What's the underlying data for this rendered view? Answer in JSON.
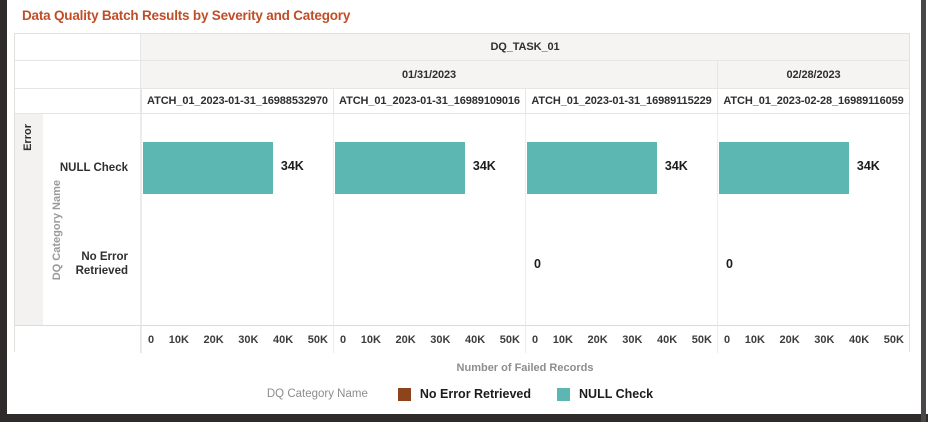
{
  "window": {
    "frame_color": "#2e2b2a"
  },
  "title": {
    "text": "Data Quality Batch Results by Severity and Category",
    "color": "#bf4e27"
  },
  "chart_data": {
    "type": "bar",
    "orientation": "horizontal",
    "title": "Data Quality Batch Results by Severity and Category",
    "facet_columns": {
      "task": "DQ_TASK_01",
      "dates": [
        {
          "label": "01/31/2023",
          "panel_span": 3
        },
        {
          "label": "02/28/2023",
          "panel_span": 1
        }
      ]
    },
    "row_axis": {
      "outer_label": "Error",
      "inner_label": "DQ Category Name",
      "categories": [
        "NULL Check",
        "No Error Retrieved"
      ]
    },
    "x_axis": {
      "label": "Number of Failed Records",
      "ticks": [
        "0",
        "10K",
        "20K",
        "30K",
        "40K",
        "50K"
      ],
      "range": [
        0,
        50000
      ],
      "grid": false
    },
    "panels": [
      {
        "batch": "ATCH_01_2023-01-31_16988532970",
        "null_check": {
          "value": 34000,
          "label": "34K"
        },
        "no_error_retrieved": null
      },
      {
        "batch": "ATCH_01_2023-01-31_16989109016",
        "null_check": {
          "value": 34000,
          "label": "34K"
        },
        "no_error_retrieved": null
      },
      {
        "batch": "ATCH_01_2023-01-31_16989115229",
        "null_check": {
          "value": 34000,
          "label": "34K"
        },
        "no_error_retrieved": {
          "value": 0,
          "label": "0"
        }
      },
      {
        "batch": "ATCH_01_2023-02-28_16989116059",
        "null_check": {
          "value": 34000,
          "label": "34K"
        },
        "no_error_retrieved": {
          "value": 0,
          "label": "0"
        }
      }
    ],
    "series_colors": {
      "NULL Check": "#5cb6b1",
      "No Error Retrieved": "#8d431c"
    },
    "legend": {
      "title": "DQ Category Name",
      "position": "bottom",
      "entries": [
        {
          "label": "No Error Retrieved",
          "color": "#8d431c"
        },
        {
          "label": "NULL Check",
          "color": "#5cb6b1"
        }
      ]
    }
  }
}
